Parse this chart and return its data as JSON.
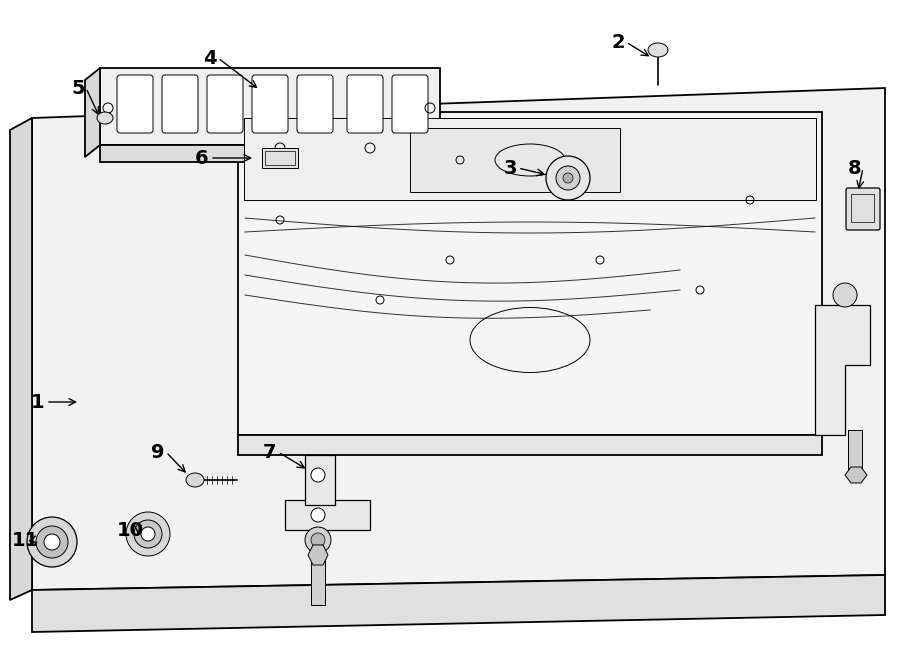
{
  "bg_color": "#ffffff",
  "line_color": "#000000",
  "fig_width": 9.0,
  "fig_height": 6.62,
  "dpi": 100,
  "lw_main": 1.3,
  "lw_med": 0.9,
  "lw_thin": 0.7
}
